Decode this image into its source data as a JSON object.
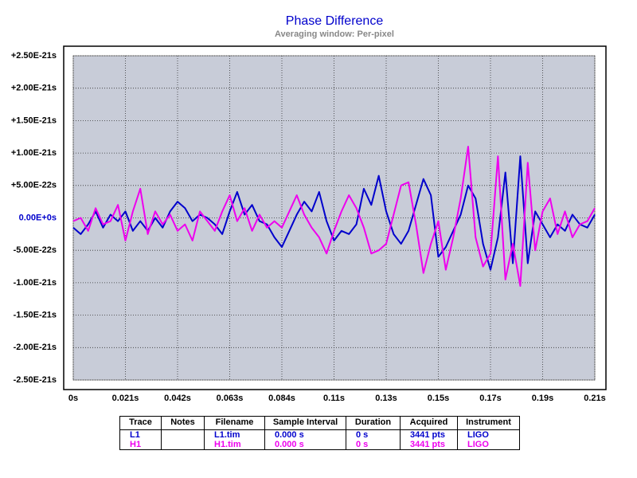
{
  "chart_data": {
    "type": "line",
    "title": "Phase Difference",
    "subtitle": "Averaging window: Per-pixel",
    "x": [
      0,
      0.003,
      0.006,
      0.009,
      0.012,
      0.015,
      0.018,
      0.021,
      0.024,
      0.027,
      0.03,
      0.033,
      0.036,
      0.039,
      0.042,
      0.045,
      0.048,
      0.051,
      0.054,
      0.057,
      0.06,
      0.063,
      0.066,
      0.069,
      0.072,
      0.075,
      0.078,
      0.081,
      0.084,
      0.087,
      0.09,
      0.093,
      0.096,
      0.099,
      0.102,
      0.105,
      0.108,
      0.111,
      0.114,
      0.117,
      0.12,
      0.123,
      0.126,
      0.129,
      0.132,
      0.135,
      0.138,
      0.141,
      0.144,
      0.147,
      0.15,
      0.153,
      0.156,
      0.159,
      0.162,
      0.165,
      0.168,
      0.171,
      0.174,
      0.177,
      0.18,
      0.183,
      0.186,
      0.189,
      0.192,
      0.195,
      0.198,
      0.201,
      0.204,
      0.207,
      0.21
    ],
    "series": [
      {
        "name": "L1",
        "color": "#0000cc",
        "values": [
          -1.5e-22,
          -2.5e-22,
          -1e-22,
          1e-22,
          -1.5e-22,
          5e-23,
          -5e-23,
          1e-22,
          -2e-22,
          -5e-23,
          -2e-22,
          0,
          -1.5e-22,
          1e-22,
          2.5e-22,
          1.5e-22,
          -5e-23,
          5e-23,
          0,
          -1e-22,
          -2.5e-22,
          1e-22,
          4e-22,
          5e-23,
          2e-22,
          -5e-23,
          -1e-22,
          -3e-22,
          -4.5e-22,
          -2e-22,
          5e-23,
          2.5e-22,
          1e-22,
          4e-22,
          -5e-23,
          -3.5e-22,
          -2e-22,
          -2.5e-22,
          -1e-22,
          4.5e-22,
          2e-22,
          6.5e-22,
          1e-22,
          -2.5e-22,
          -4e-22,
          -2e-22,
          2e-22,
          6e-22,
          3.5e-22,
          -6e-22,
          -4.5e-22,
          -2e-22,
          5e-23,
          5e-22,
          3e-22,
          -4e-22,
          -8e-22,
          -3e-22,
          7e-22,
          -7e-22,
          9.5e-22,
          -7e-22,
          1e-22,
          -1e-22,
          -3e-22,
          -1e-22,
          -2e-22,
          5e-23,
          -1e-22,
          -1.5e-22,
          5e-23
        ]
      },
      {
        "name": "H1",
        "color": "#ee00ee",
        "values": [
          -5e-23,
          0,
          -2e-22,
          1.5e-22,
          -1e-22,
          -5e-23,
          2e-22,
          -3.5e-22,
          1e-22,
          4.5e-22,
          -2.5e-22,
          1e-22,
          -1e-22,
          5e-23,
          -2e-22,
          -1e-22,
          -3.5e-22,
          1e-22,
          -5e-23,
          -2e-22,
          1e-22,
          3.5e-22,
          -5e-23,
          1.5e-22,
          -2e-22,
          5e-23,
          -1.5e-22,
          -5e-23,
          -1.5e-22,
          1e-22,
          3.5e-22,
          5e-23,
          -1.5e-22,
          -3e-22,
          -5.5e-22,
          -2e-22,
          1e-22,
          3.5e-22,
          1.5e-22,
          -1.5e-22,
          -5.5e-22,
          -5e-22,
          -4e-22,
          5e-23,
          5e-22,
          5.5e-22,
          -1e-22,
          -8.5e-22,
          -4e-22,
          -5e-23,
          -8e-22,
          -3e-22,
          3e-22,
          1.1e-21,
          -3e-22,
          -7.5e-22,
          -5.5e-22,
          9.5e-22,
          -9.5e-22,
          -4e-22,
          -1.05e-21,
          8.5e-22,
          -5e-22,
          1e-22,
          3e-22,
          -2.5e-22,
          1e-22,
          -3e-22,
          -1e-22,
          -5e-23,
          1.5e-22
        ]
      }
    ],
    "xlim": [
      0,
      0.21
    ],
    "xticks": [
      {
        "value": 0,
        "label": "0s"
      },
      {
        "value": 0.021,
        "label": "0.021s"
      },
      {
        "value": 0.042,
        "label": "0.042s"
      },
      {
        "value": 0.063,
        "label": "0.063s"
      },
      {
        "value": 0.084,
        "label": "0.084s"
      },
      {
        "value": 0.105,
        "label": "0.11s"
      },
      {
        "value": 0.126,
        "label": "0.13s"
      },
      {
        "value": 0.147,
        "label": "0.15s"
      },
      {
        "value": 0.168,
        "label": "0.17s"
      },
      {
        "value": 0.189,
        "label": "0.19s"
      },
      {
        "value": 0.21,
        "label": "0.21s"
      }
    ],
    "ylim": [
      -2.5e-21,
      2.5e-21
    ],
    "yticks": [
      {
        "value": 2.5e-21,
        "label": "+2.50E-21s"
      },
      {
        "value": 2e-21,
        "label": "+2.00E-21s"
      },
      {
        "value": 1.5e-21,
        "label": "+1.50E-21s"
      },
      {
        "value": 1e-21,
        "label": "+1.00E-21s"
      },
      {
        "value": 5e-22,
        "label": "+5.00E-22s"
      },
      {
        "value": 0,
        "label": "0.00E+0s"
      },
      {
        "value": -5e-22,
        "label": "-5.00E-22s"
      },
      {
        "value": -1e-21,
        "label": "-1.00E-21s"
      },
      {
        "value": -1.5e-21,
        "label": "-1.50E-21s"
      },
      {
        "value": -2e-21,
        "label": "-2.00E-21s"
      },
      {
        "value": -2.5e-21,
        "label": "-2.50E-21s"
      }
    ],
    "grid": true
  },
  "table": {
    "columns": [
      "Trace",
      "Notes",
      "Filename",
      "Sample Interval",
      "Duration",
      "Acquired",
      "Instrument"
    ],
    "rows": [
      {
        "filename": "L1.tim",
        "sample_interval": "0.000 s",
        "duration": "0 s",
        "acquired": "3441 pts",
        "instrument": "LIGO"
      },
      {
        "filename": "H1.tim",
        "sample_interval": "0.000 s",
        "duration": "0 s",
        "acquired": "3441 pts",
        "instrument": "LIGO"
      }
    ]
  }
}
